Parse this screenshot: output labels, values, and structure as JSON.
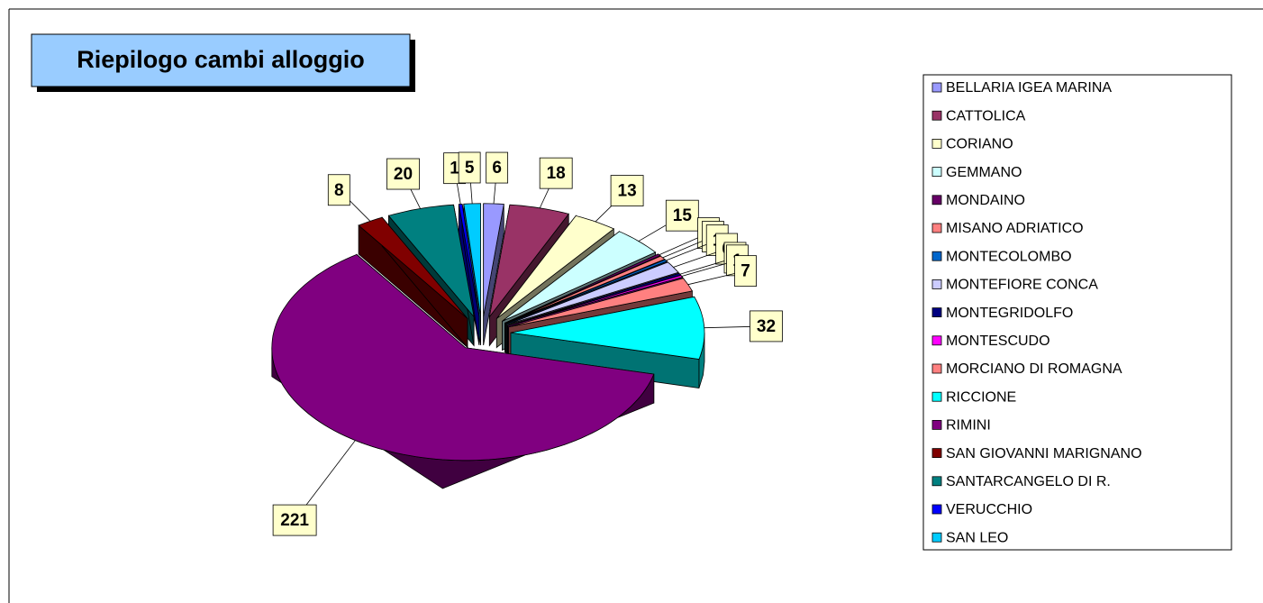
{
  "chart_data": {
    "type": "pie",
    "title": "Riepilogo cambi alloggio",
    "categories": [
      "BELLARIA IGEA MARINA",
      "CATTOLICA",
      "CORIANO",
      "GEMMANO",
      "MONDAINO",
      "MISANO ADRIATICO",
      "MONTECOLOMBO",
      "MONTEFIORE CONCA",
      "MONTEGRIDOLFO",
      "MONTESCUDO",
      "MORCIANO DI ROMAGNA",
      "RICCIONE",
      "RIMINI",
      "SAN GIOVANNI MARIGNANO",
      "SANTARCANGELO DI R.",
      "VERUCCHIO",
      "SAN LEO"
    ],
    "values": [
      6,
      18,
      13,
      15,
      1,
      2,
      1,
      6,
      1,
      1,
      7,
      32,
      221,
      8,
      20,
      1,
      5
    ],
    "colors": [
      "#9999ff",
      "#993366",
      "#ffffcc",
      "#ccffff",
      "#660066",
      "#ff8080",
      "#0066cc",
      "#ccccff",
      "#000080",
      "#ff00ff",
      "#ff8080",
      "#00ffff",
      "#800080",
      "#800000",
      "#008080",
      "#0000ff",
      "#00ccff"
    ],
    "legend": "right"
  }
}
